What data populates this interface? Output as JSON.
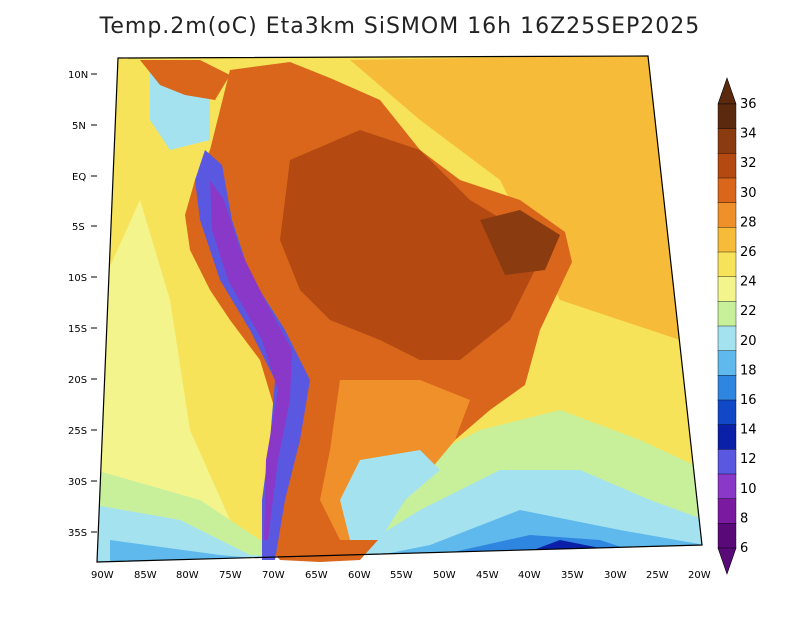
{
  "title": "Temp.2m(oC) Eta3km SiSMOM 16h 16Z25SEP2025",
  "lat_labels": [
    "10N",
    "5N",
    "EQ",
    "5S",
    "10S",
    "15S",
    "20S",
    "25S",
    "30S",
    "35S"
  ],
  "lon_labels": [
    "90W",
    "85W",
    "80W",
    "75W",
    "70W",
    "65W",
    "60W",
    "55W",
    "50W",
    "45W",
    "40W",
    "35W",
    "30W",
    "25W",
    "20W"
  ],
  "colorbar": {
    "labels": [
      "36",
      "34",
      "32",
      "30",
      "28",
      "26",
      "24",
      "22",
      "20",
      "18",
      "16",
      "14",
      "12",
      "10",
      "8",
      "6"
    ],
    "colors": [
      "#5b2a0e",
      "#8a3b10",
      "#b44a12",
      "#d9661a",
      "#f0902a",
      "#f7bb3a",
      "#f7e35a",
      "#f3f58c",
      "#c8f09a",
      "#a4e2f0",
      "#5fb9ec",
      "#2f86e0",
      "#1048c8",
      "#0b20a8",
      "#5a58e0",
      "#8a38c8",
      "#7a1aa0",
      "#5a0a78"
    ]
  },
  "zones": {
    "ocean_warm": "#f7bb3a",
    "ocean_mid": "#f7e35a",
    "ocean_cool": "#f3f58c",
    "ocean_cold": "#a4e2f0",
    "ocean_colder": "#5fb9ec",
    "ocean_coldest": "#2f86e0",
    "land_hot": "#d9661a",
    "land_hotter": "#b44a12",
    "andes": "#5a58e0"
  }
}
